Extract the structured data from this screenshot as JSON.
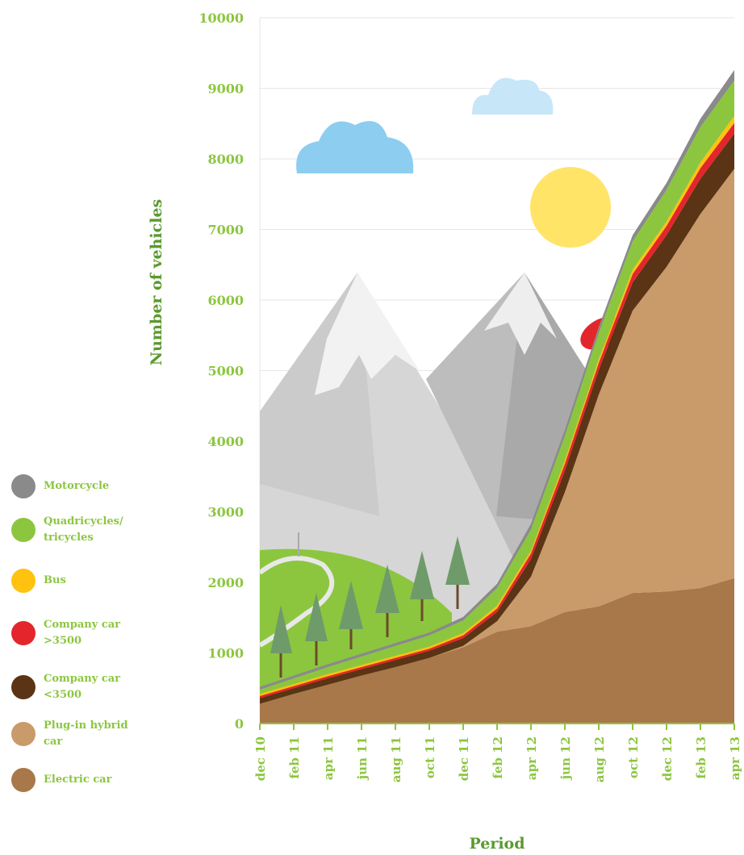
{
  "chart_data": {
    "type": "stacked_area",
    "y_label": "Number of vehicles",
    "x_label": "Period",
    "categories": [
      "dec 10",
      "feb 11",
      "apr 11",
      "jun 11",
      "aug 11",
      "oct 11",
      "dec 11",
      "feb 12",
      "apr 12",
      "jun 12",
      "aug 12",
      "oct 12",
      "dec 12",
      "feb 13",
      "apr 13"
    ],
    "series": [
      {
        "name": "Motorcycle",
        "color": "#8a8a8a",
        "values": [
          40,
          40,
          40,
          40,
          40,
          40,
          50,
          60,
          80,
          80,
          80,
          90,
          100,
          120,
          150
        ]
      },
      {
        "name": "Quadricycles/ tricycles",
        "color": "#8cc63f",
        "values": [
          60,
          80,
          100,
          120,
          140,
          160,
          180,
          250,
          300,
          350,
          380,
          400,
          450,
          500,
          500
        ]
      },
      {
        "name": "Bus",
        "color": "#ffc20e",
        "values": [
          30,
          30,
          30,
          30,
          30,
          30,
          30,
          40,
          40,
          50,
          50,
          60,
          60,
          80,
          100
        ]
      },
      {
        "name": "Company car >3500",
        "color": "#e3262b",
        "values": [
          30,
          30,
          30,
          30,
          30,
          30,
          40,
          50,
          80,
          100,
          100,
          120,
          130,
          150,
          150
        ]
      },
      {
        "name": "Company car <3500",
        "color": "#5a3414",
        "values": [
          80,
          80,
          90,
          90,
          100,
          100,
          110,
          130,
          250,
          300,
          350,
          400,
          450,
          500,
          500
        ]
      },
      {
        "name": "Plug-in hybrid car",
        "color": "#c99a6a",
        "values": [
          0,
          0,
          0,
          0,
          0,
          0,
          20,
          150,
          700,
          1700,
          3000,
          4000,
          4600,
          5300,
          5800
        ]
      },
      {
        "name": "Electric car",
        "color": "#a8784a",
        "values": [
          280,
          420,
          550,
          680,
          800,
          930,
          1080,
          1300,
          1380,
          1580,
          1660,
          1850,
          1870,
          1920,
          2060
        ]
      }
    ],
    "ylim": [
      0,
      10000
    ],
    "yticks": [
      0,
      1000,
      2000,
      3000,
      4000,
      5000,
      6000,
      7000,
      8000,
      9000,
      10000
    ],
    "grid": true
  }
}
